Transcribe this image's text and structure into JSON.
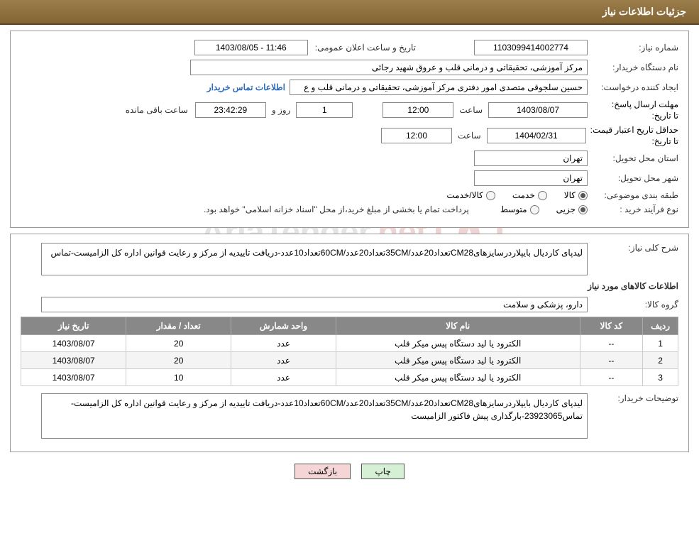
{
  "header": {
    "title": "جزئیات اطلاعات نیاز"
  },
  "fields": {
    "need_no_label": "شماره نیاز:",
    "need_no": "1103099414002774",
    "announce_label": "تاریخ و ساعت اعلان عمومی:",
    "announce_value": "1403/08/05 - 11:46",
    "buyer_org_label": "نام دستگاه خریدار:",
    "buyer_org": "مرکز آموزشی، تحقیقاتی و درمانی قلب و عروق شهید رجائی",
    "requester_label": "ایجاد کننده درخواست:",
    "requester": "حسین سلجوقی متصدی امور دفتری مرکز آموزشی، تحقیقاتی و درمانی قلب و ع",
    "buyer_contact_link": "اطلاعات تماس خریدار",
    "deadline_label_top": "مهلت ارسال پاسخ:",
    "deadline_label_sub": "تا تاریخ:",
    "deadline_date": "1403/08/07",
    "time_label": "ساعت",
    "deadline_time": "12:00",
    "remaining_days": "1",
    "day_and": "روز و",
    "remaining_clock": "23:42:29",
    "remaining_suffix": "ساعت باقی مانده",
    "validity_label_top": "حداقل تاریخ اعتبار قیمت:",
    "validity_label_sub": "تا تاریخ:",
    "validity_date": "1404/02/31",
    "validity_time": "12:00",
    "delivery_province_label": "استان محل تحویل:",
    "delivery_province": "تهران",
    "delivery_city_label": "شهر محل تحویل:",
    "delivery_city": "تهران",
    "category_label": "طبقه بندی موضوعی:",
    "cat_goods": "کالا",
    "cat_service": "خدمت",
    "cat_both": "کالا/خدمت",
    "purchase_type_label": "نوع فرآیند خرید :",
    "pt_minor": "جزیی",
    "pt_medium": "متوسط",
    "payment_note": "پرداخت تمام یا بخشی از مبلغ خرید،از محل \"اسناد خزانه اسلامی\" خواهد بود."
  },
  "desc": {
    "need_summary_label": "شرح کلی نیاز:",
    "need_summary": "لیدپای کاردیال بایپلاردرسایزهایCM28تعداد20عدد/35CMتعداد20عدد/60CMتعداد10عدد-دریافت تاییدیه از مرکز و رعایت قوانین اداره کل الزامیست-تماس",
    "goods_section_title": "اطلاعات کالاهای مورد نیاز",
    "group_label": "گروه کالا:",
    "group_value": "دارو، پزشکی و سلامت",
    "buyer_notes_label": "توضیحات خریدار:",
    "buyer_notes": "لیدپای کاردیال بایپلاردرسایزهایCM28تعداد20عدد/35CMتعداد20عدد/60CMتعداد10عدد-دریافت تاییدیه از مرکز و رعایت قوانین اداره کل الزامیست-تماس23923065-بارگذاری پیش فاکتور الزامیست"
  },
  "table": {
    "headers": {
      "index": "ردیف",
      "code": "کد کالا",
      "name": "نام کالا",
      "unit": "واحد شمارش",
      "qty": "تعداد / مقدار",
      "date": "تاریخ نیاز"
    },
    "rows": [
      {
        "index": "1",
        "code": "--",
        "name": "الکترود یا لید دستگاه پیس میکر قلب",
        "unit": "عدد",
        "qty": "20",
        "date": "1403/08/07"
      },
      {
        "index": "2",
        "code": "--",
        "name": "الکترود یا لید دستگاه پیس میکر قلب",
        "unit": "عدد",
        "qty": "20",
        "date": "1403/08/07"
      },
      {
        "index": "3",
        "code": "--",
        "name": "الکترود یا لید دستگاه پیس میکر قلب",
        "unit": "عدد",
        "qty": "10",
        "date": "1403/08/07"
      }
    ]
  },
  "buttons": {
    "print": "چاپ",
    "back": "بازگشت"
  },
  "watermark": {
    "text_main": "AriaTender",
    "text_suffix": ".net"
  },
  "styling": {
    "header_bg": "#8a6d3b",
    "header_text": "#ffffff",
    "panel_border": "#999999",
    "field_border": "#888888",
    "link_color": "#2e6cb8",
    "th_bg": "#888888",
    "th_text": "#ffffff",
    "td_border": "#cccccc",
    "row_alt_bg": "#f4f4f4",
    "btn_print_bg": "#d5f0d5",
    "btn_back_bg": "#f5d5d5",
    "watermark_shield_stroke": "#b84040",
    "watermark_text_color": "#888888",
    "font_base_size": 12
  }
}
